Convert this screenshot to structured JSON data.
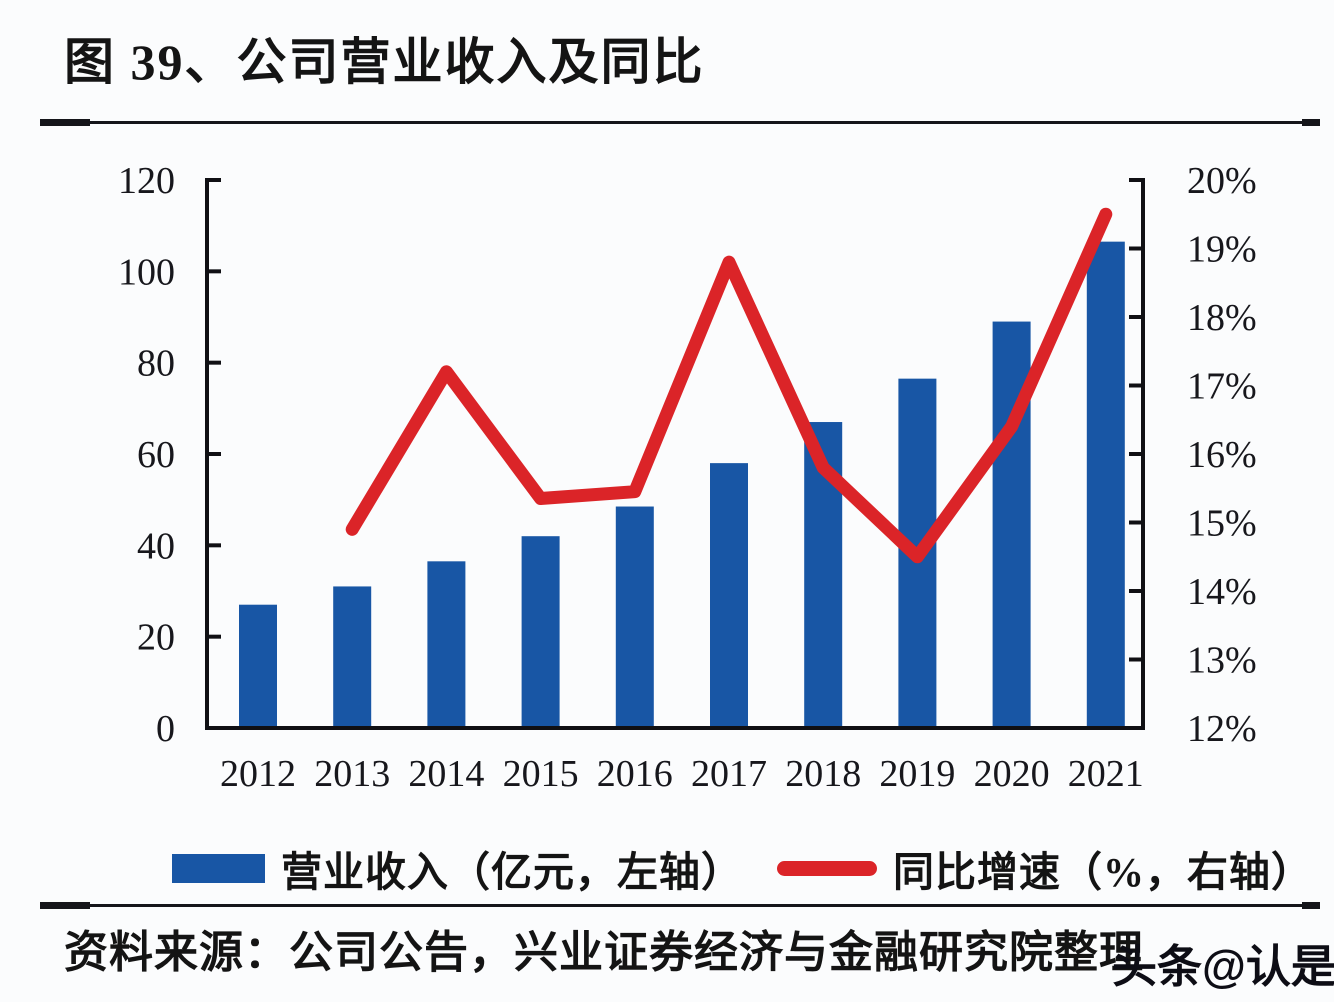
{
  "title": "图 39、公司营业收入及同比",
  "legend": [
    {
      "label": "营业收入（亿元，左轴）",
      "color": "#1856A5",
      "swatch": "bar"
    },
    {
      "label": "同比增速（%，右轴）",
      "color": "#DB2428",
      "swatch": "line"
    }
  ],
  "footer": {
    "source": "资料来源：公司公告，兴业证券经济与金融研究院整理",
    "watermark": "头条@认是"
  },
  "chart_data": {
    "type": "bar",
    "subtype": "bar-and-line-dual-axis",
    "title": "图 39、公司营业收入及同比",
    "categories": [
      "2012",
      "2013",
      "2014",
      "2015",
      "2016",
      "2017",
      "2018",
      "2019",
      "2020",
      "2021"
    ],
    "series": [
      {
        "name": "营业收入（亿元，左轴）",
        "type": "bar",
        "axis": "left",
        "color": "#1856A5",
        "values": [
          27,
          31,
          36.5,
          42,
          48.5,
          58,
          67,
          76.5,
          89,
          106.5
        ]
      },
      {
        "name": "同比增速（%，右轴）",
        "type": "line",
        "axis": "right",
        "color": "#DB2428",
        "values": [
          null,
          14.9,
          17.2,
          15.35,
          15.45,
          18.8,
          15.8,
          14.5,
          16.4,
          19.5
        ]
      }
    ],
    "left_axis": {
      "min": 0,
      "max": 120,
      "step": 20,
      "tick_labels": [
        "0",
        "20",
        "40",
        "60",
        "80",
        "100",
        "120"
      ]
    },
    "right_axis": {
      "min": 12,
      "max": 20,
      "step": 1,
      "tick_labels": [
        "12%",
        "13%",
        "14%",
        "15%",
        "16%",
        "17%",
        "18%",
        "19%",
        "20%"
      ]
    },
    "grid": false,
    "legend_position": "bottom"
  }
}
